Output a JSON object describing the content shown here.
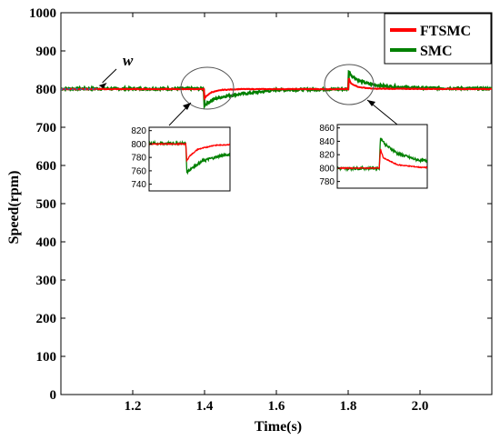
{
  "chart_data": {
    "type": "line",
    "xlabel": "Time(s)",
    "ylabel": "Speed(rpm)",
    "xlim": [
      1.0,
      2.2
    ],
    "ylim": [
      0,
      1000
    ],
    "xticks": [
      "1.2",
      "1.4",
      "1.6",
      "1.8",
      "2.0"
    ],
    "yticks": [
      "0",
      "100",
      "200",
      "300",
      "400",
      "500",
      "600",
      "700",
      "800",
      "900",
      "1000"
    ],
    "grid": false,
    "legend": "top-right",
    "series": [
      {
        "name": "FTSMC",
        "color": "#ff0000",
        "x": [
          1.0,
          1.398,
          1.4,
          1.405,
          1.42,
          1.45,
          1.5,
          1.8,
          1.802,
          1.807,
          1.83,
          1.87,
          2.2
        ],
        "y": [
          800,
          800,
          775,
          782,
          792,
          798,
          800,
          800,
          828,
          815,
          805,
          801,
          800
        ]
      },
      {
        "name": "SMC",
        "color": "#008000",
        "x": [
          1.0,
          1.398,
          1.4,
          1.41,
          1.43,
          1.46,
          1.5,
          1.55,
          1.6,
          1.8,
          1.802,
          1.81,
          1.83,
          1.86,
          1.9,
          1.95,
          2.0,
          2.2
        ],
        "y": [
          801,
          801,
          758,
          765,
          775,
          782,
          787,
          792,
          798,
          800,
          846,
          835,
          822,
          813,
          808,
          805,
          803,
          801
        ]
      },
      {
        "name": "w",
        "color": "#1f77b4",
        "x": [
          1.0,
          1.1
        ],
        "y": [
          800,
          800
        ]
      }
    ],
    "annotations": [
      {
        "text": "w",
        "target_x": 1.08,
        "target_y": 800
      }
    ],
    "insets": [
      {
        "xlim": [
          1.33,
          1.48
        ],
        "ylim": [
          730,
          825
        ],
        "yticks": [
          "740",
          "760",
          "780",
          "800",
          "820"
        ]
      },
      {
        "xlim": [
          1.73,
          1.88
        ],
        "ylim": [
          770,
          865
        ],
        "yticks": [
          "780",
          "800",
          "820",
          "840",
          "860"
        ]
      }
    ]
  }
}
